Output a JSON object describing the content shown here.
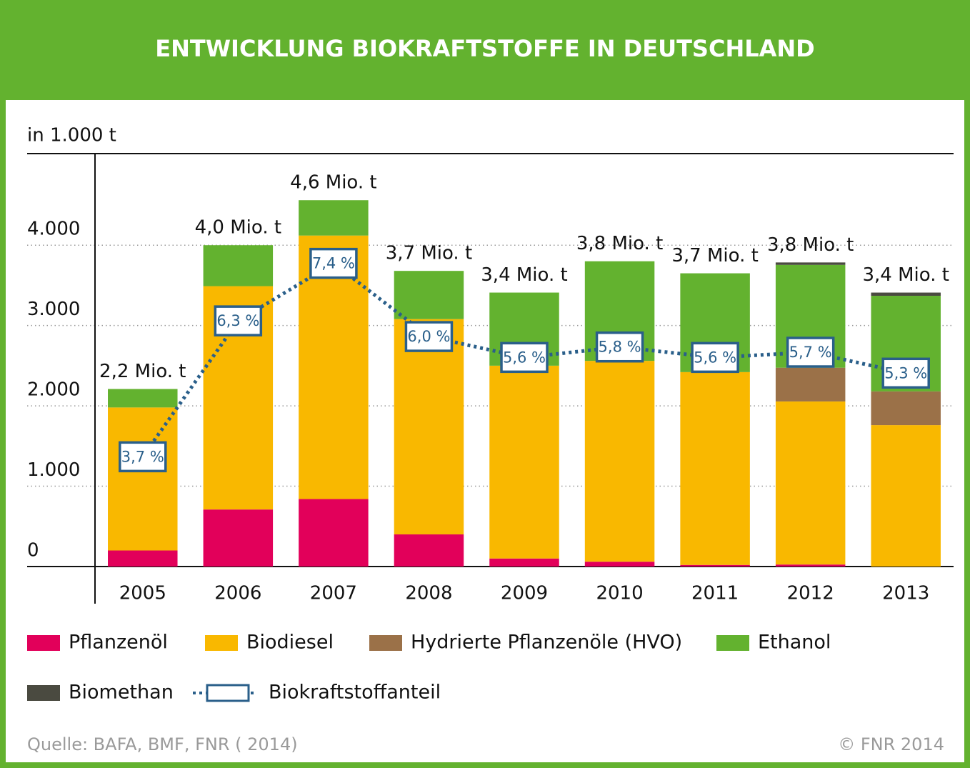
{
  "chart_data": {
    "type": "bar",
    "stacked": true,
    "title": "ENTWICKLUNG BIOKRAFTSTOFFE IN DEUTSCHLAND",
    "y_axis_label": "in 1.000 t",
    "categories": [
      "2005",
      "2006",
      "2007",
      "2008",
      "2009",
      "2010",
      "2011",
      "2012",
      "2013"
    ],
    "total_labels": [
      "2,2 Mio. t",
      "4,0 Mio. t",
      "4,6 Mio. t",
      "3,7 Mio. t",
      "3,4 Mio. t",
      "3,8 Mio. t",
      "3,7 Mio. t",
      "3,8 Mio. t",
      "3,4 Mio. t"
    ],
    "series": [
      {
        "name": "Pflanzenöl",
        "color": "#e2005a",
        "values": [
          200,
          710,
          840,
          400,
          100,
          60,
          20,
          25,
          null
        ]
      },
      {
        "name": "Biodiesel",
        "color": "#f9b800",
        "values": [
          1780,
          2780,
          3280,
          2680,
          2400,
          2500,
          2400,
          2030,
          1760
        ]
      },
      {
        "name": "Hydrierte Pflanzenöle (HVO)",
        "color": "#9b7148",
        "values": [
          null,
          null,
          null,
          null,
          null,
          null,
          null,
          420,
          420
        ]
      },
      {
        "name": "Ethanol",
        "color": "#63b22f",
        "values": [
          230,
          510,
          440,
          600,
          910,
          1240,
          1230,
          1280,
          1190
        ]
      },
      {
        "name": "Biomethan",
        "color": "#4a4a40",
        "values": [
          null,
          null,
          null,
          null,
          null,
          null,
          null,
          30,
          40
        ]
      },
      {
        "name": "Biokraftstoffanteil",
        "color": "#2a5f8a",
        "type": "line",
        "axis": "y2",
        "values": [
          3.7,
          6.3,
          7.4,
          6.0,
          5.6,
          5.8,
          5.6,
          5.7,
          5.3
        ],
        "value_labels": [
          "3,7 %",
          "6,3 %",
          "7,4 %",
          "6,0 %",
          "5,6 %",
          "5,8 %",
          "5,6 %",
          "5,7 %",
          "5,3 %"
        ]
      }
    ],
    "ylim": [
      0,
      5140
    ],
    "yticks": [
      0,
      {
        "value": 1000,
        "label": "1.000"
      },
      {
        "value": 2000,
        "label": "2.000"
      },
      {
        "value": 3000,
        "label": "3.000"
      },
      {
        "value": 4000,
        "label": "4.000"
      }
    ],
    "y2lim": [
      1.6,
      9.5
    ],
    "grid": true,
    "legend": "bottom",
    "source": "Quelle: BAFA, BMF, FNR ( 2014)",
    "copyright": "© FNR  2014"
  }
}
